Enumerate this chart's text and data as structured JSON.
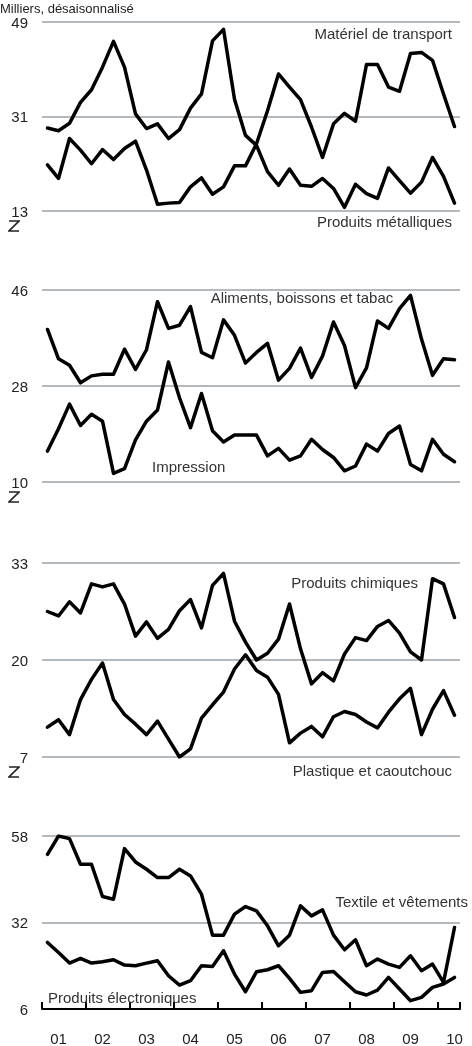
{
  "chart_data": [
    {
      "type": "line",
      "ylabel": "Milliers, désaisonnalisé",
      "ylim": [
        13,
        49
      ],
      "yticks": [
        13,
        31,
        49
      ],
      "grid": "y",
      "marker": "none",
      "tick_labels": "y",
      "categories": [
        null,
        null,
        null,
        null,
        null,
        null,
        null,
        null,
        null,
        null,
        null,
        null,
        null,
        null,
        null,
        null,
        null,
        null,
        null,
        null,
        null,
        null,
        null,
        null,
        null,
        null,
        null,
        null,
        null,
        null,
        null,
        null,
        null,
        null,
        null,
        null,
        null,
        null
      ],
      "series": [
        {
          "name": "Matériel de transport",
          "color": "#000000",
          "values": [
            21.8,
            19.2,
            26.8,
            24.6,
            22.0,
            24.7,
            22.8,
            24.9,
            26.3,
            20.8,
            14.3,
            14.5,
            14.6,
            17.6,
            19.3,
            16.2,
            17.6,
            21.6,
            21.6,
            25.8,
            32.1,
            39.1,
            36.6,
            34.2,
            29.0,
            23.2,
            29.6,
            31.6,
            30.1,
            40.9,
            40.9,
            36.6,
            35.8,
            43.0,
            43.2,
            41.7,
            35.3,
            29.1
          ]
        },
        {
          "name": "Produits métalliques",
          "color": "#000000",
          "values": [
            28.8,
            28.3,
            29.7,
            33.7,
            36.1,
            40.4,
            45.3,
            40.4,
            31.5,
            28.7,
            29.6,
            26.8,
            28.5,
            32.6,
            35.3,
            45.4,
            47.6,
            34.3,
            27.4,
            25.5,
            20.5,
            17.9,
            21.0,
            17.9,
            17.7,
            19.2,
            17.3,
            13.7,
            18.1,
            16.3,
            15.4,
            21.2,
            18.8,
            16.4,
            18.5,
            23.2,
            19.6,
            14.5
          ]
        }
      ]
    },
    {
      "type": "line",
      "ylim": [
        10,
        46
      ],
      "yticks": [
        10,
        28,
        46
      ],
      "grid": "y",
      "marker": "none",
      "tick_labels": "y",
      "categories": [
        null,
        null,
        null,
        null,
        null,
        null,
        null,
        null,
        null,
        null,
        null,
        null,
        null,
        null,
        null,
        null,
        null,
        null,
        null,
        null,
        null,
        null,
        null,
        null,
        null,
        null,
        null,
        null,
        null,
        null,
        null,
        null,
        null,
        null,
        null,
        null,
        null,
        null
      ],
      "series": [
        {
          "name": "Aliments, boissons et tabac",
          "color": "#000000",
          "values": [
            38.6,
            33.1,
            31.9,
            28.6,
            29.9,
            30.2,
            30.2,
            34.9,
            31.1,
            34.8,
            43.8,
            38.8,
            39.4,
            42.9,
            34.3,
            33.3,
            40.4,
            37.5,
            32.3,
            34.3,
            36.0,
            29.1,
            31.3,
            35.1,
            29.6,
            33.6,
            40.0,
            35.6,
            27.7,
            31.4,
            40.2,
            38.8,
            42.5,
            45.0,
            36.8,
            30.0,
            33.1,
            32.9
          ]
        },
        {
          "name": "Impression",
          "color": "#000000",
          "values": [
            15.8,
            20.0,
            24.6,
            20.6,
            22.7,
            21.4,
            11.6,
            12.5,
            17.9,
            21.4,
            23.5,
            32.5,
            25.8,
            20.2,
            26.6,
            19.6,
            17.5,
            18.8,
            18.8,
            18.8,
            14.9,
            16.3,
            14.1,
            14.9,
            18.0,
            16.1,
            14.6,
            12.1,
            13.0,
            17.1,
            15.8,
            19.1,
            20.5,
            13.3,
            12.1,
            18.0,
            15.2,
            13.8
          ]
        }
      ]
    },
    {
      "type": "line",
      "ylim": [
        7,
        33
      ],
      "yticks": [
        7,
        20,
        33
      ],
      "grid": "y",
      "marker": "none",
      "tick_labels": "y",
      "categories": [
        null,
        null,
        null,
        null,
        null,
        null,
        null,
        null,
        null,
        null,
        null,
        null,
        null,
        null,
        null,
        null,
        null,
        null,
        null,
        null,
        null,
        null,
        null,
        null,
        null,
        null,
        null,
        null,
        null,
        null,
        null,
        null,
        null,
        null,
        null,
        null,
        null,
        null
      ],
      "series": [
        {
          "name": "Produits chimiques",
          "color": "#000000",
          "values": [
            26.5,
            25.9,
            27.8,
            26.3,
            30.2,
            29.8,
            30.2,
            27.5,
            23.2,
            25.1,
            22.9,
            24.1,
            26.6,
            28.1,
            24.3,
            30.0,
            31.6,
            25.2,
            22.4,
            20.0,
            20.9,
            22.8,
            27.5,
            21.5,
            16.8,
            18.3,
            17.2,
            20.8,
            23.0,
            22.6,
            24.5,
            25.3,
            23.6,
            21.1,
            20.0,
            30.9,
            30.2,
            25.7
          ]
        },
        {
          "name": "Plastique et caoutchouc",
          "color": "#000000",
          "values": [
            11.0,
            12.0,
            10.0,
            14.7,
            17.4,
            19.6,
            14.7,
            12.7,
            11.4,
            10.0,
            11.8,
            9.4,
            7.0,
            8.1,
            12.2,
            14.0,
            15.7,
            18.8,
            20.7,
            18.6,
            17.7,
            15.4,
            8.9,
            10.2,
            11.1,
            9.7,
            12.4,
            13.1,
            12.7,
            11.7,
            10.9,
            13.0,
            14.8,
            16.2,
            10.0,
            13.4,
            15.9,
            12.6
          ]
        }
      ]
    },
    {
      "type": "line",
      "ylim": [
        6,
        58
      ],
      "yticks": [
        6,
        32,
        58
      ],
      "grid": "y",
      "marker": "none",
      "categories": [
        null,
        "01",
        null,
        null,
        null,
        "02",
        null,
        null,
        null,
        "03",
        null,
        null,
        null,
        "04",
        null,
        null,
        null,
        "05",
        null,
        null,
        null,
        "06",
        null,
        null,
        null,
        "07",
        null,
        null,
        null,
        "08",
        null,
        null,
        null,
        "09",
        null,
        null,
        null,
        "10"
      ],
      "series": [
        {
          "name": "Textile et vêtements",
          "color": "#000000",
          "values": [
            52.5,
            58.0,
            57.2,
            49.5,
            49.5,
            39.8,
            39.0,
            54.2,
            50.2,
            48.0,
            45.5,
            45.5,
            48.0,
            46.0,
            40.5,
            28.2,
            28.2,
            34.5,
            36.8,
            35.5,
            31.0,
            25.0,
            28.2,
            37.0,
            34.0,
            35.8,
            28.2,
            23.8,
            26.8,
            19.0,
            21.0,
            19.5,
            18.5,
            22.0,
            17.5,
            19.5,
            14.0,
            30.5
          ]
        },
        {
          "name": "Produits électroniques",
          "color": "#000000",
          "values": [
            26.0,
            23.0,
            19.8,
            21.2,
            19.8,
            20.2,
            20.8,
            19.2,
            19.0,
            19.8,
            20.5,
            16.0,
            13.2,
            14.5,
            19.0,
            18.8,
            23.5,
            16.5,
            11.2,
            17.2,
            17.8,
            19.0,
            15.2,
            11.0,
            11.5,
            17.0,
            17.3,
            14.2,
            11.2,
            10.2,
            11.7,
            15.5,
            12.0,
            8.5,
            9.5,
            12.5,
            13.5,
            15.5
          ]
        }
      ]
    }
  ]
}
